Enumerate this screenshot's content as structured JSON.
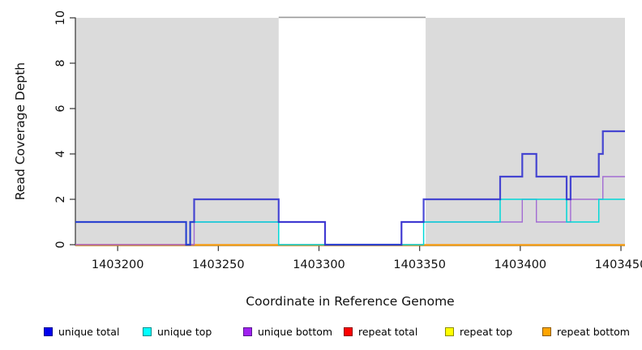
{
  "figure": {
    "x_axis": {
      "label": "Coordinate in Reference Genome",
      "tick_values": [
        1403200,
        1403250,
        1403300,
        1403350,
        1403400,
        1403450
      ],
      "min": 1403179,
      "max": 1403452
    },
    "y_axis": {
      "label": "Read Coverage Depth",
      "tick_values": [
        0,
        2,
        4,
        6,
        8,
        10
      ],
      "min": 0,
      "max": 10
    }
  },
  "chart_data": {
    "type": "line",
    "step": true,
    "title": "",
    "xlabel": "Coordinate in Reference Genome",
    "ylabel": "Read Coverage Depth",
    "xlim": [
      1403179,
      1403452
    ],
    "ylim": [
      0,
      10
    ],
    "x_ticks": [
      1403200,
      1403250,
      1403300,
      1403350,
      1403400,
      1403450
    ],
    "y_ticks": [
      0,
      2,
      4,
      6,
      8,
      10
    ],
    "shaded_regions": {
      "color": "#DBDBDB",
      "ranges": [
        [
          1403179,
          1403280
        ],
        [
          1403353,
          1403452
        ]
      ]
    },
    "unshaded_top_line": {
      "depth": 10,
      "range": [
        1403280,
        1403353
      ],
      "color": "#9A9A9A"
    },
    "series": [
      {
        "name": "repeat total",
        "color": "#E02222",
        "line_width": 2.0,
        "opacity": 1,
        "y_offset": 0.2,
        "steps": [
          [
            1403179,
            0
          ],
          [
            1403452,
            0
          ]
        ]
      },
      {
        "name": "repeat top",
        "color": "#F0F000",
        "line_width": 1.6,
        "opacity": 1,
        "y_offset": 0.3,
        "steps": [
          [
            1403179,
            0
          ],
          [
            1403452,
            0
          ]
        ]
      },
      {
        "name": "repeat bottom",
        "color": "#FFA510",
        "line_width": 1.7,
        "opacity": 1,
        "y_offset": 0.6,
        "steps": [
          [
            1403179,
            0
          ],
          [
            1403452,
            0
          ]
        ]
      },
      {
        "name": "unique bottom",
        "color": "#9E63D2",
        "line_width": 1.4,
        "opacity": 0.92,
        "y_offset": 0,
        "steps": [
          [
            1403179,
            0
          ],
          [
            1403238,
            1
          ],
          [
            1403303,
            0
          ],
          [
            1403341,
            1
          ],
          [
            1403401,
            2
          ],
          [
            1403408,
            1
          ],
          [
            1403425,
            2
          ],
          [
            1403441,
            3
          ],
          [
            1403452,
            3
          ]
        ]
      },
      {
        "name": "unique top",
        "color": "#00D8D8",
        "line_width": 1.5,
        "opacity": 1,
        "y_offset": 0,
        "steps": [
          [
            1403179,
            1
          ],
          [
            1403234,
            0
          ],
          [
            1403236,
            1
          ],
          [
            1403280,
            0
          ],
          [
            1403352,
            1
          ],
          [
            1403390,
            2
          ],
          [
            1403423,
            1
          ],
          [
            1403439,
            2
          ],
          [
            1403452,
            2
          ]
        ]
      },
      {
        "name": "unique total",
        "color": "#2A2ACF",
        "line_width": 2.2,
        "opacity": 0.85,
        "y_offset": 0,
        "steps": [
          [
            1403179,
            1
          ],
          [
            1403234,
            0
          ],
          [
            1403236,
            1
          ],
          [
            1403238,
            2
          ],
          [
            1403280,
            1
          ],
          [
            1403303,
            0
          ],
          [
            1403341,
            1
          ],
          [
            1403352,
            2
          ],
          [
            1403390,
            3
          ],
          [
            1403401,
            4
          ],
          [
            1403408,
            3
          ],
          [
            1403423,
            2
          ],
          [
            1403425,
            3
          ],
          [
            1403439,
            4
          ],
          [
            1403441,
            5
          ],
          [
            1403452,
            5
          ]
        ]
      }
    ]
  },
  "legend": {
    "items": [
      {
        "label": "unique total",
        "fill": "#0000EE",
        "border": "#00008B"
      },
      {
        "label": "unique top",
        "fill": "#00FFFF",
        "border": "#008B8B"
      },
      {
        "label": "unique bottom",
        "fill": "#A020F0",
        "border": "#551A8B"
      },
      {
        "label": "repeat total",
        "fill": "#FF0000",
        "border": "#8B0000"
      },
      {
        "label": "repeat top",
        "fill": "#FFFF00",
        "border": "#8B8B00"
      },
      {
        "label": "repeat bottom",
        "fill": "#FFA500",
        "border": "#8B5A00"
      }
    ]
  }
}
